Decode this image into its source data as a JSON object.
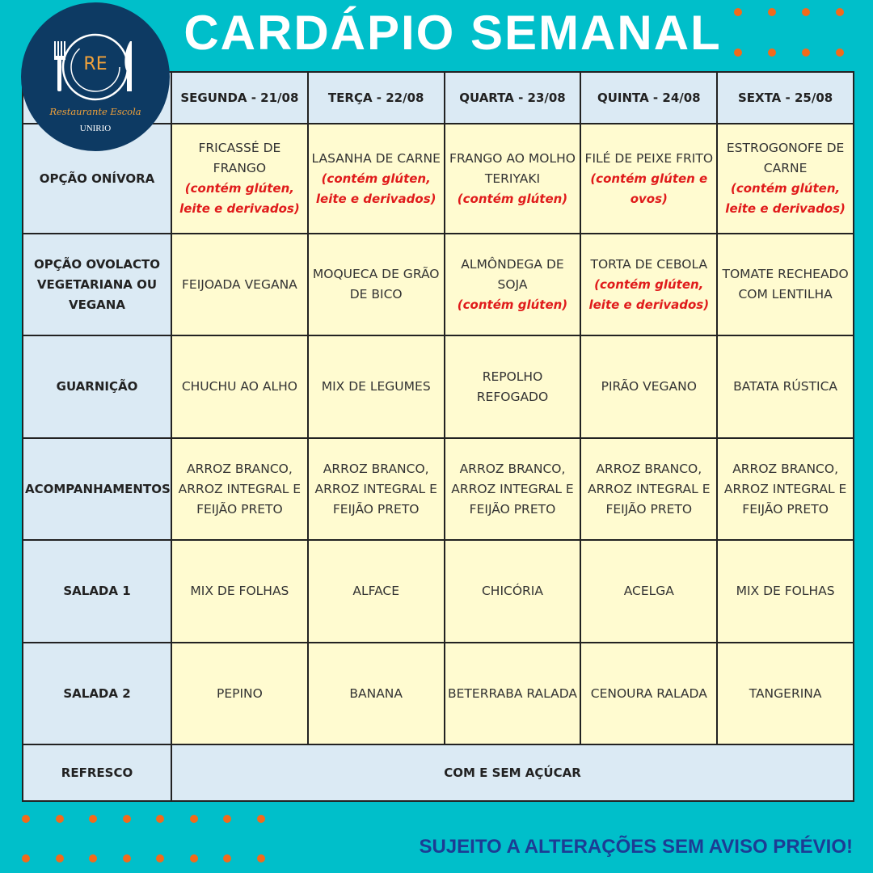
{
  "title": "CARDÁPIO SEMANAL",
  "logo": {
    "initials": "RE",
    "name": "Restaurante Escola",
    "institution": "UNIRIO",
    "color": "#0d3a63",
    "accent": "#f2a23a"
  },
  "colors": {
    "background": "#00bfca",
    "dots": "#f26a1b",
    "header": "#dbeaf4",
    "cell": "#fffbd0",
    "allergen": "#e01b1b",
    "footer": "#1c3c94"
  },
  "days": [
    "SEGUNDA - 21/08",
    "TERÇA - 22/08",
    "QUARTA - 23/08",
    "QUINTA - 24/08",
    "SEXTA - 25/08"
  ],
  "rows": [
    {
      "label": "OPÇÃO ONÍVORA",
      "cells": [
        {
          "text": "FRICASSÉ DE FRANGO",
          "note": "(contém glúten, leite e derivados)"
        },
        {
          "text": "LASANHA DE CARNE",
          "note": "(contém glúten, leite e derivados)"
        },
        {
          "text": "FRANGO AO MOLHO TERIYAKI",
          "note": "(contém glúten)"
        },
        {
          "text": "FILÉ DE PEIXE FRITO",
          "note": "(contém glúten e ovos)"
        },
        {
          "text": "ESTROGONOFE DE CARNE",
          "note": "(contém glúten, leite e derivados)"
        }
      ]
    },
    {
      "label": "OPÇÃO OVOLACTO VEGETARIANA OU VEGANA",
      "cells": [
        {
          "text": "FEIJOADA VEGANA"
        },
        {
          "text": "MOQUECA DE GRÃO DE BICO"
        },
        {
          "text": "ALMÔNDEGA DE SOJA",
          "note": "(contém glúten)"
        },
        {
          "text": "TORTA DE CEBOLA",
          "note": "(contém glúten, leite e derivados)"
        },
        {
          "text": "TOMATE RECHEADO COM LENTILHA"
        }
      ]
    },
    {
      "label": "GUARNIÇÃO",
      "cells": [
        {
          "text": "CHUCHU AO ALHO"
        },
        {
          "text": "MIX DE LEGUMES"
        },
        {
          "text": "REPOLHO REFOGADO"
        },
        {
          "text": "PIRÃO VEGANO"
        },
        {
          "text": "BATATA RÚSTICA"
        }
      ]
    },
    {
      "label": "ACOMPANHAMENTOS",
      "cells": [
        {
          "text": "ARROZ BRANCO, ARROZ INTEGRAL E FEIJÃO PRETO"
        },
        {
          "text": "ARROZ BRANCO, ARROZ INTEGRAL E FEIJÃO PRETO"
        },
        {
          "text": "ARROZ BRANCO, ARROZ INTEGRAL E FEIJÃO PRETO"
        },
        {
          "text": "ARROZ BRANCO, ARROZ INTEGRAL E FEIJÃO PRETO"
        },
        {
          "text": "ARROZ BRANCO, ARROZ INTEGRAL E FEIJÃO PRETO"
        }
      ]
    },
    {
      "label": "SALADA 1",
      "cells": [
        {
          "text": "MIX DE FOLHAS"
        },
        {
          "text": "ALFACE"
        },
        {
          "text": "CHICÓRIA"
        },
        {
          "text": "ACELGA"
        },
        {
          "text": "MIX DE FOLHAS"
        }
      ]
    },
    {
      "label": "SALADA 2",
      "cells": [
        {
          "text": "PEPINO"
        },
        {
          "text": "BANANA"
        },
        {
          "text": "BETERRABA RALADA"
        },
        {
          "text": "CENOURA RALADA"
        },
        {
          "text": "TANGERINA"
        }
      ]
    }
  ],
  "refresco": {
    "label": "REFRESCO",
    "value": "COM E SEM AÇÚCAR"
  },
  "footer": "SUJEITO A ALTERAÇÕES SEM AVISO PRÉVIO!"
}
